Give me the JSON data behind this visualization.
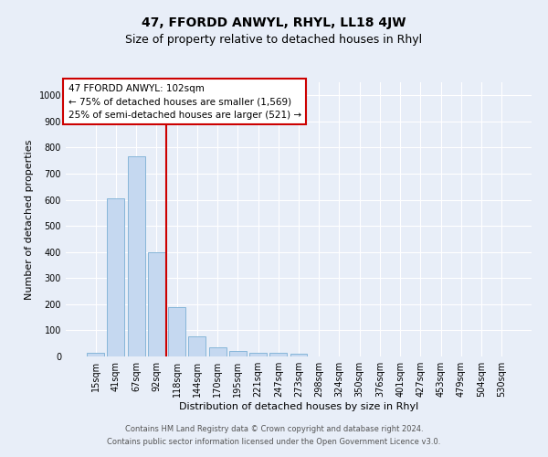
{
  "title": "47, FFORDD ANWYL, RHYL, LL18 4JW",
  "subtitle": "Size of property relative to detached houses in Rhyl",
  "xlabel": "Distribution of detached houses by size in Rhyl",
  "ylabel": "Number of detached properties",
  "footer_line1": "Contains HM Land Registry data © Crown copyright and database right 2024.",
  "footer_line2": "Contains public sector information licensed under the Open Government Licence v3.0.",
  "bar_labels": [
    "15sqm",
    "41sqm",
    "67sqm",
    "92sqm",
    "118sqm",
    "144sqm",
    "170sqm",
    "195sqm",
    "221sqm",
    "247sqm",
    "273sqm",
    "298sqm",
    "324sqm",
    "350sqm",
    "376sqm",
    "401sqm",
    "427sqm",
    "453sqm",
    "479sqm",
    "504sqm",
    "530sqm"
  ],
  "bar_values": [
    15,
    605,
    765,
    400,
    190,
    78,
    35,
    20,
    15,
    13,
    10,
    0,
    0,
    0,
    0,
    0,
    0,
    0,
    0,
    0,
    0
  ],
  "bar_color": "#c5d8f0",
  "bar_edgecolor": "#7aafd4",
  "vline_color": "#cc0000",
  "annotation_text": "47 FFORDD ANWYL: 102sqm\n← 75% of detached houses are smaller (1,569)\n25% of semi-detached houses are larger (521) →",
  "annotation_box_edgecolor": "#cc0000",
  "ylim": [
    0,
    1050
  ],
  "yticks": [
    0,
    100,
    200,
    300,
    400,
    500,
    600,
    700,
    800,
    900,
    1000
  ],
  "background_color": "#e8eef8",
  "plot_background": "#e8eef8",
  "grid_color": "#ffffff",
  "title_fontsize": 10,
  "subtitle_fontsize": 9,
  "axis_label_fontsize": 8,
  "tick_fontsize": 7,
  "annotation_fontsize": 7.5,
  "footer_fontsize": 6
}
